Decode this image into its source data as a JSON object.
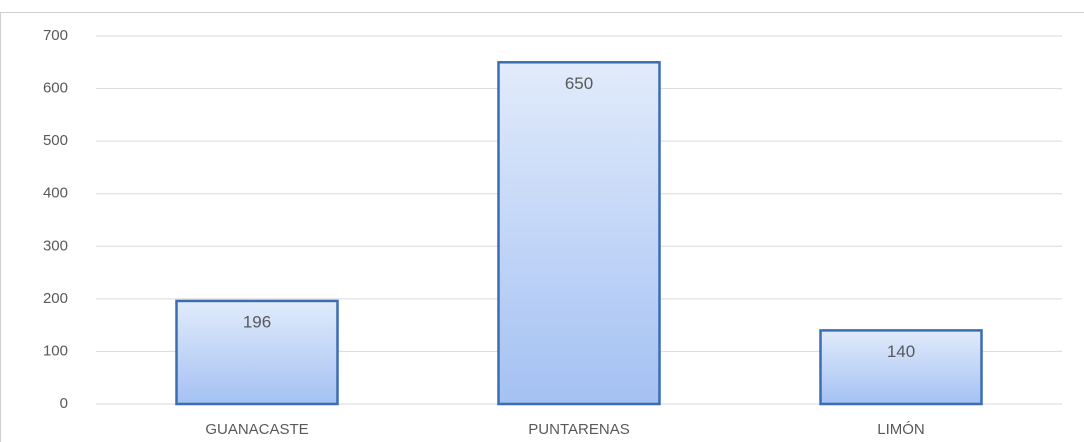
{
  "chart_data": {
    "type": "bar",
    "categories": [
      "GUANACASTE",
      "PUNTARENAS",
      "LIMÓN"
    ],
    "values": [
      196,
      650,
      140
    ],
    "color": "#3b6db0",
    "ylim": [
      0,
      700
    ],
    "yticks": [
      0,
      100,
      200,
      300,
      400,
      500,
      600,
      700
    ],
    "grid": true
  }
}
